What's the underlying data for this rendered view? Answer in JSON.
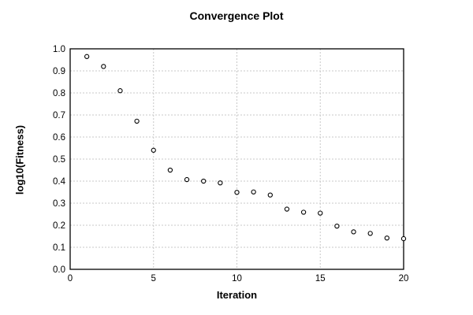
{
  "page": {
    "background": "#ffffff"
  },
  "chart_data": {
    "type": "scatter",
    "title": "Convergence Plot",
    "xlabel": "Iteration",
    "ylabel": "log10(Fitness)",
    "xlim": [
      0,
      20
    ],
    "ylim": [
      0.0,
      1.0
    ],
    "xticks": [
      0,
      5,
      10,
      15,
      20
    ],
    "yticks": [
      0.0,
      0.1,
      0.2,
      0.3,
      0.4,
      0.5,
      0.6,
      0.7,
      0.8,
      0.9,
      1.0
    ],
    "grid": "dashed",
    "legend": "none",
    "marker": "open-circle",
    "series": [
      {
        "name": "fitness",
        "x": [
          1,
          2,
          3,
          4,
          5,
          6,
          7,
          8,
          9,
          10,
          11,
          12,
          13,
          14,
          15,
          16,
          17,
          18,
          19,
          20
        ],
        "y": [
          0.965,
          0.92,
          0.81,
          0.672,
          0.54,
          0.45,
          0.407,
          0.4,
          0.392,
          0.349,
          0.351,
          0.337,
          0.273,
          0.259,
          0.255,
          0.196,
          0.17,
          0.163,
          0.142,
          0.139
        ]
      }
    ],
    "colors": {
      "marker_stroke": "#000000",
      "marker_fill": "#ffffff",
      "grid": "#c8c8c8",
      "frame": "#000000",
      "text": "#000000",
      "background": "#ffffff"
    }
  }
}
